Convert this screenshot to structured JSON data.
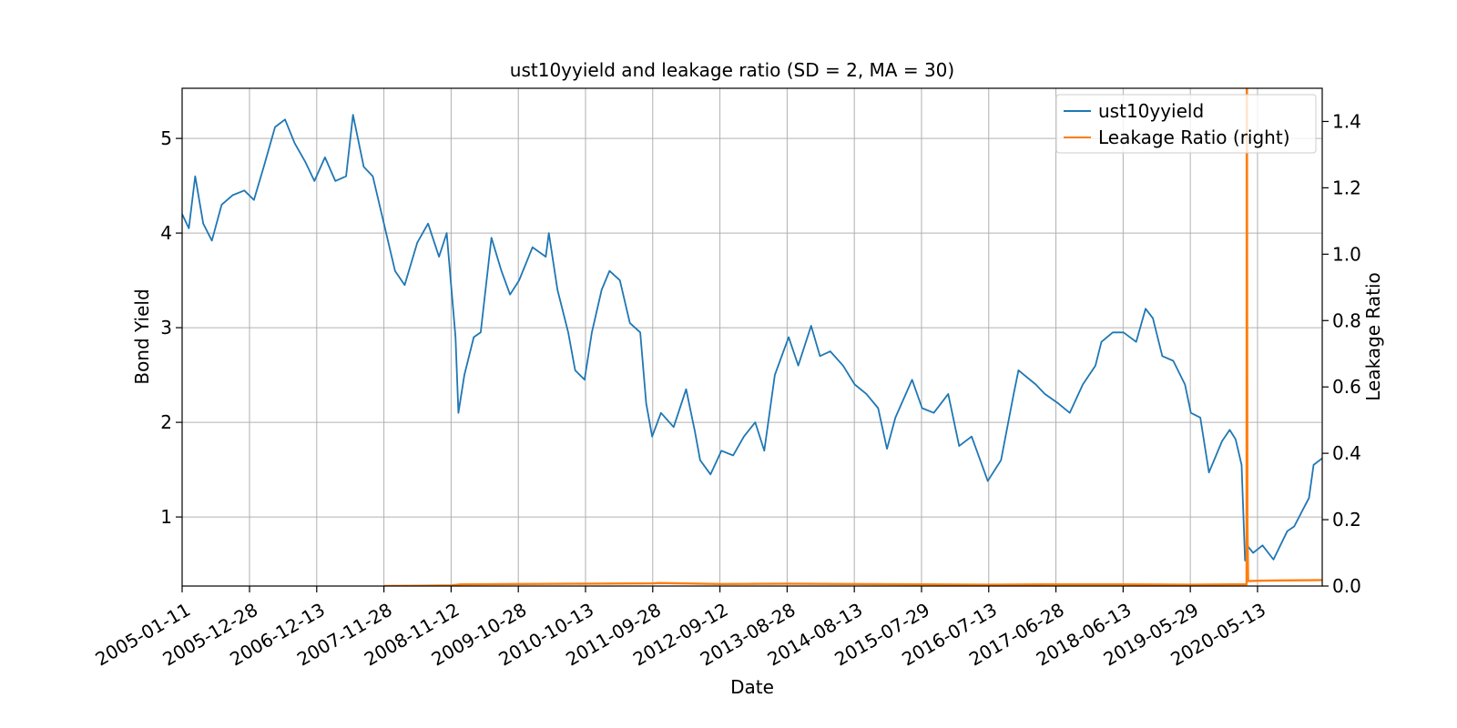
{
  "chart_data": {
    "type": "line",
    "title": "ust10yyield and leakage ratio (SD = 2, MA = 30)",
    "xlabel": "Date",
    "ylabel": "Bond Yield",
    "y2label": "Leakage Ratio",
    "grid": true,
    "legend_position": "top-right",
    "x_ticks": [
      "2005-01-11",
      "2005-12-28",
      "2006-12-13",
      "2007-11-28",
      "2008-11-12",
      "2009-10-28",
      "2010-10-13",
      "2011-09-28",
      "2012-09-12",
      "2013-08-28",
      "2014-08-13",
      "2015-07-29",
      "2016-07-13",
      "2017-06-28",
      "2018-06-13",
      "2019-05-29",
      "2020-05-13"
    ],
    "x_range": [
      "2005-01-11",
      "2021-04-15"
    ],
    "y_ticks": [
      1,
      2,
      3,
      4,
      5
    ],
    "ylim": [
      0.27,
      5.53
    ],
    "y2_ticks": [
      0.0,
      0.2,
      0.4,
      0.6,
      0.8,
      1.0,
      1.2,
      1.4
    ],
    "y2lim": [
      0,
      1.5
    ],
    "series": [
      {
        "name": "ust10yyield",
        "color": "#1f77b4",
        "axis": "left",
        "x": [
          "2005-01-11",
          "2005-02-15",
          "2005-03-20",
          "2005-05-01",
          "2005-06-15",
          "2005-08-05",
          "2005-10-01",
          "2005-12-01",
          "2006-01-20",
          "2006-03-15",
          "2006-05-10",
          "2006-07-01",
          "2006-08-20",
          "2006-10-15",
          "2006-12-01",
          "2007-01-25",
          "2007-03-20",
          "2007-05-15",
          "2007-06-20",
          "2007-08-15",
          "2007-10-01",
          "2007-11-28",
          "2008-01-25",
          "2008-03-15",
          "2008-05-20",
          "2008-07-15",
          "2008-09-10",
          "2008-10-20",
          "2008-12-05",
          "2008-12-20",
          "2009-01-20",
          "2009-03-10",
          "2009-04-15",
          "2009-06-10",
          "2009-08-01",
          "2009-09-15",
          "2009-11-01",
          "2010-01-10",
          "2010-03-20",
          "2010-04-05",
          "2010-05-20",
          "2010-07-15",
          "2010-08-20",
          "2010-10-08",
          "2010-11-15",
          "2011-01-05",
          "2011-02-15",
          "2011-04-10",
          "2011-06-01",
          "2011-07-25",
          "2011-08-25",
          "2011-09-25",
          "2011-11-10",
          "2012-01-15",
          "2012-03-20",
          "2012-05-05",
          "2012-06-01",
          "2012-07-25",
          "2012-09-20",
          "2012-11-20",
          "2013-01-15",
          "2013-03-15",
          "2013-05-01",
          "2013-06-25",
          "2013-09-05",
          "2013-10-25",
          "2013-12-31",
          "2014-02-15",
          "2014-04-10",
          "2014-06-15",
          "2014-08-15",
          "2014-10-15",
          "2014-12-15",
          "2015-01-30",
          "2015-03-15",
          "2015-06-10",
          "2015-08-01",
          "2015-10-01",
          "2015-12-15",
          "2016-02-10",
          "2016-04-15",
          "2016-07-08",
          "2016-09-15",
          "2016-11-20",
          "2016-12-15",
          "2017-03-15",
          "2017-05-01",
          "2017-07-10",
          "2017-09-08",
          "2017-11-15",
          "2018-01-20",
          "2018-02-20",
          "2018-04-20",
          "2018-06-15",
          "2018-08-20",
          "2018-10-08",
          "2018-11-15",
          "2019-01-03",
          "2019-03-01",
          "2019-05-01",
          "2019-06-01",
          "2019-07-20",
          "2019-09-03",
          "2019-11-10",
          "2019-12-20",
          "2020-01-20",
          "2020-02-20",
          "2020-03-09",
          "2020-03-20",
          "2020-04-20",
          "2020-06-08",
          "2020-08-04",
          "2020-10-15",
          "2020-11-20",
          "2021-01-10",
          "2021-02-05",
          "2021-03-01",
          "2021-04-15"
        ],
        "y": [
          4.2,
          4.05,
          4.6,
          4.1,
          3.92,
          4.3,
          4.4,
          4.45,
          4.35,
          4.72,
          5.12,
          5.2,
          4.95,
          4.75,
          4.55,
          4.8,
          4.55,
          4.6,
          5.25,
          4.7,
          4.6,
          4.1,
          3.6,
          3.45,
          3.9,
          4.1,
          3.75,
          4.0,
          2.9,
          2.1,
          2.5,
          2.9,
          2.95,
          3.95,
          3.6,
          3.35,
          3.5,
          3.85,
          3.75,
          4.0,
          3.4,
          2.95,
          2.55,
          2.45,
          2.95,
          3.4,
          3.6,
          3.5,
          3.05,
          2.95,
          2.2,
          1.85,
          2.1,
          1.95,
          2.35,
          1.9,
          1.6,
          1.45,
          1.7,
          1.65,
          1.85,
          2.0,
          1.7,
          2.5,
          2.9,
          2.6,
          3.02,
          2.7,
          2.75,
          2.6,
          2.4,
          2.3,
          2.15,
          1.72,
          2.05,
          2.45,
          2.15,
          2.1,
          2.3,
          1.75,
          1.85,
          1.38,
          1.6,
          2.3,
          2.55,
          2.4,
          2.3,
          2.2,
          2.1,
          2.4,
          2.6,
          2.85,
          2.95,
          2.95,
          2.85,
          3.2,
          3.1,
          2.7,
          2.65,
          2.4,
          2.1,
          2.05,
          1.47,
          1.8,
          1.92,
          1.82,
          1.55,
          0.54,
          0.7,
          0.62,
          0.7,
          0.55,
          0.85,
          0.9,
          1.1,
          1.2,
          1.55,
          1.62
        ]
      },
      {
        "name": "Leakage Ratio (right)",
        "color": "#ff7f0e",
        "axis": "right",
        "x": [
          "2007-11-28",
          "2008-06-01",
          "2008-11-12",
          "2009-01-01",
          "2009-10-28",
          "2010-10-13",
          "2011-09-28",
          "2011-11-01",
          "2012-09-12",
          "2013-08-28",
          "2014-08-13",
          "2015-07-29",
          "2016-07-13",
          "2017-06-28",
          "2018-06-13",
          "2019-05-29",
          "2019-12-31",
          "2020-03-17",
          "2020-03-18",
          "2020-03-19",
          "2020-03-21",
          "2020-03-25",
          "2020-05-13",
          "2020-10-01",
          "2021-04-15"
        ],
        "y": [
          0.0,
          0.001,
          0.002,
          0.005,
          0.006,
          0.007,
          0.008,
          0.009,
          0.006,
          0.007,
          0.006,
          0.005,
          0.004,
          0.005,
          0.005,
          0.004,
          0.005,
          0.005,
          1.5,
          1.5,
          0.2,
          0.015,
          0.016,
          0.017,
          0.018
        ]
      }
    ]
  }
}
